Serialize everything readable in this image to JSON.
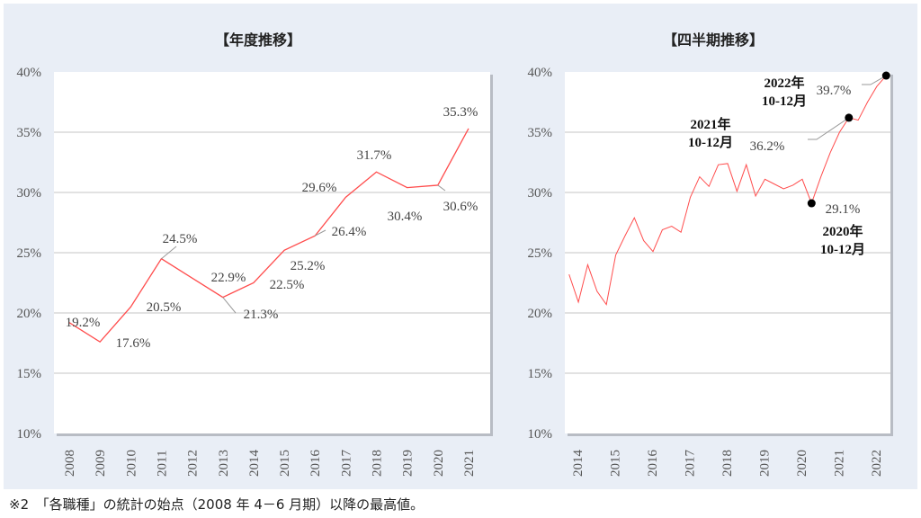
{
  "footnote": "※2　「各職種」の統計の始点（2008 年 4－6 月期）以降の最高値。",
  "colors": {
    "line": "#ff4d4d",
    "marker": "#000000",
    "panel": "#e9eef6",
    "grid": "#d9d9d9"
  },
  "chart_data": [
    {
      "type": "line",
      "title": "【年度推移】",
      "categories": [
        "2008",
        "2009",
        "2010",
        "2011",
        "2012",
        "2013",
        "2014",
        "2015",
        "2016",
        "2017",
        "2018",
        "2019",
        "2020",
        "2021"
      ],
      "values": [
        19.2,
        17.6,
        20.5,
        24.5,
        22.9,
        21.3,
        22.5,
        25.2,
        26.4,
        29.6,
        31.7,
        30.4,
        30.6,
        35.3
      ],
      "data_labels": [
        "19.2%",
        "17.6%",
        "20.5%",
        "24.5%",
        "22.9%",
        "21.3%",
        "22.5%",
        "25.2%",
        "26.4%",
        "29.6%",
        "31.7%",
        "30.4%",
        "30.6%",
        "35.3%"
      ],
      "yticks": [
        "10%",
        "15%",
        "20%",
        "25%",
        "30%",
        "35%",
        "40%"
      ],
      "ylim": [
        10,
        40
      ],
      "grid": true
    },
    {
      "type": "line",
      "title": "【四半期推移】",
      "x_start": "2014 4-6月",
      "xticks": [
        "2014",
        "2015",
        "2016",
        "2017",
        "2018",
        "2019",
        "2020",
        "2021",
        "2022"
      ],
      "values": [
        23.2,
        20.9,
        24.0,
        21.8,
        20.7,
        24.8,
        26.4,
        27.9,
        26.0,
        25.1,
        26.9,
        27.2,
        26.7,
        29.6,
        31.3,
        30.5,
        32.3,
        32.4,
        30.1,
        32.3,
        29.7,
        31.1,
        30.7,
        30.3,
        30.6,
        31.1,
        29.1,
        31.3,
        33.3,
        35.0,
        36.2,
        36.0,
        37.5,
        38.8,
        39.7
      ],
      "highlights": [
        {
          "index": 26,
          "label": "29.1%",
          "annotation": [
            "2020年",
            "10-12月"
          ]
        },
        {
          "index": 30,
          "label": "36.2%",
          "annotation": [
            "2021年",
            "10-12月"
          ]
        },
        {
          "index": 34,
          "label": "39.7%",
          "annotation": [
            "2022年",
            "10-12月"
          ]
        }
      ],
      "yticks": [
        "10%",
        "15%",
        "20%",
        "25%",
        "30%",
        "35%",
        "40%"
      ],
      "ylim": [
        10,
        40
      ],
      "grid": true
    }
  ]
}
